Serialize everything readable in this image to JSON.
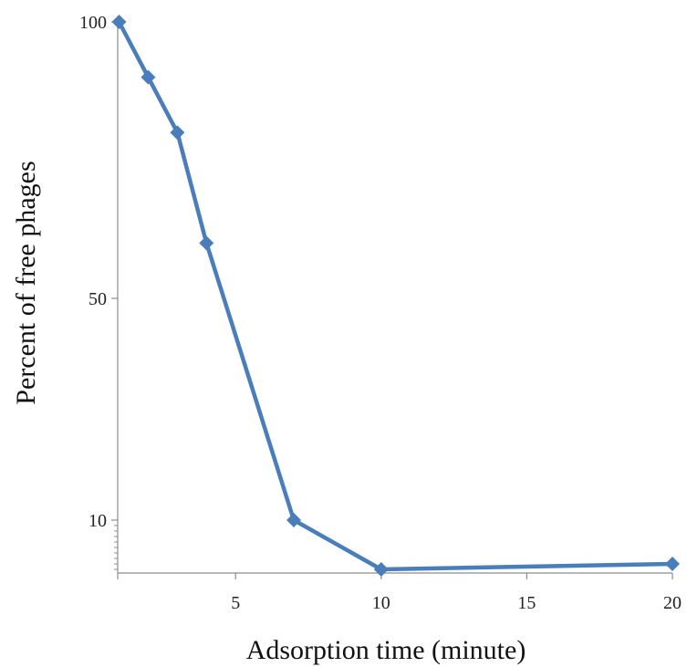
{
  "chart_data": {
    "type": "line",
    "title": "",
    "xlabel": "Adsorption time (minute)",
    "ylabel": "Percent of free phages",
    "x_tick_labels": [
      "5",
      "10",
      "15",
      "20"
    ],
    "y_tick_labels": [
      "10",
      "50",
      "100"
    ],
    "series": [
      {
        "color": "#4a7ebb",
        "marker": "diamond",
        "points": [
          {
            "x": 1,
            "y": 100
          },
          {
            "x": 2,
            "y": 90
          },
          {
            "x": 3,
            "y": 80
          },
          {
            "x": 4,
            "y": 60
          },
          {
            "x": 7,
            "y": 10
          },
          {
            "x": 10,
            "y": 1
          },
          {
            "x": 20,
            "y": 2
          }
        ]
      }
    ],
    "grid": false,
    "legend": "none"
  }
}
